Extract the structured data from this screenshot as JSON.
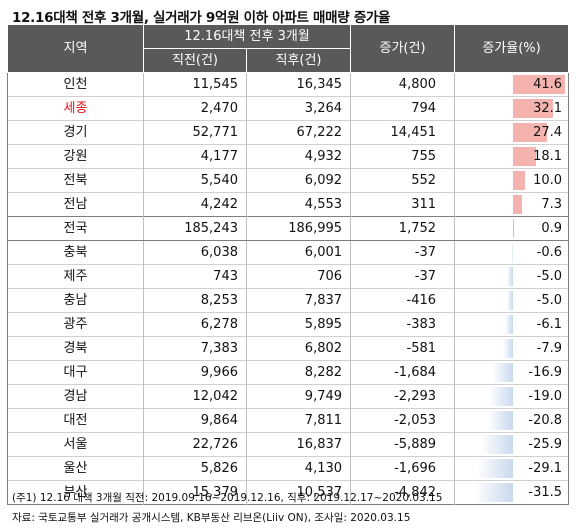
{
  "title": "12.16대책 전후 3개월, 실거래가 9억원 이하 아파트 매매량 증가율",
  "headers": {
    "region": "지역",
    "period_group": "12.16대책 전후 3개월",
    "before": "직전(건)",
    "after": "직후(건)",
    "change": "증가(건)",
    "rate": "증가율(%)"
  },
  "colors": {
    "positive_bar": "#f4b3ae",
    "negative_bar": "#c9d9ee",
    "highlight_text": "#e8141b",
    "header_bg": "#595959"
  },
  "highlight_region": "세종",
  "total_region": "전국",
  "chart_data": {
    "type": "table",
    "title": "12.16대책 전후 3개월, 실거래가 9억원 이하 아파트 매매량 증가율",
    "columns": [
      "지역",
      "직전(건)",
      "직후(건)",
      "증가(건)",
      "증가율(%)"
    ],
    "rows": [
      {
        "region": "인천",
        "before": "11,545",
        "after": "16,345",
        "change": "4,800",
        "rate": 41.6,
        "rate_label": "41.6"
      },
      {
        "region": "세종",
        "before": "2,470",
        "after": "3,264",
        "change": "794",
        "rate": 32.1,
        "rate_label": "32.1"
      },
      {
        "region": "경기",
        "before": "52,771",
        "after": "67,222",
        "change": "14,451",
        "rate": 27.4,
        "rate_label": "27.4"
      },
      {
        "region": "강원",
        "before": "4,177",
        "after": "4,932",
        "change": "755",
        "rate": 18.1,
        "rate_label": "18.1"
      },
      {
        "region": "전북",
        "before": "5,540",
        "after": "6,092",
        "change": "552",
        "rate": 10.0,
        "rate_label": "10.0"
      },
      {
        "region": "전남",
        "before": "4,242",
        "after": "4,553",
        "change": "311",
        "rate": 7.3,
        "rate_label": "7.3"
      },
      {
        "region": "전국",
        "before": "185,243",
        "after": "186,995",
        "change": "1,752",
        "rate": 0.9,
        "rate_label": "0.9"
      },
      {
        "region": "충북",
        "before": "6,038",
        "after": "6,001",
        "change": "-37",
        "rate": -0.6,
        "rate_label": "-0.6"
      },
      {
        "region": "제주",
        "before": "743",
        "after": "706",
        "change": "-37",
        "rate": -5.0,
        "rate_label": "-5.0"
      },
      {
        "region": "충남",
        "before": "8,253",
        "after": "7,837",
        "change": "-416",
        "rate": -5.0,
        "rate_label": "-5.0"
      },
      {
        "region": "광주",
        "before": "6,278",
        "after": "5,895",
        "change": "-383",
        "rate": -6.1,
        "rate_label": "-6.1"
      },
      {
        "region": "경북",
        "before": "7,383",
        "after": "6,802",
        "change": "-581",
        "rate": -7.9,
        "rate_label": "-7.9"
      },
      {
        "region": "대구",
        "before": "9,966",
        "after": "8,282",
        "change": "-1,684",
        "rate": -16.9,
        "rate_label": "-16.9"
      },
      {
        "region": "경남",
        "before": "12,042",
        "after": "9,749",
        "change": "-2,293",
        "rate": -19.0,
        "rate_label": "-19.0"
      },
      {
        "region": "대전",
        "before": "9,864",
        "after": "7,811",
        "change": "-2,053",
        "rate": -20.8,
        "rate_label": "-20.8"
      },
      {
        "region": "서울",
        "before": "22,726",
        "after": "16,837",
        "change": "-5,889",
        "rate": -25.9,
        "rate_label": "-25.9"
      },
      {
        "region": "울산",
        "before": "5,826",
        "after": "4,130",
        "change": "-1,696",
        "rate": -29.1,
        "rate_label": "-29.1"
      },
      {
        "region": "부산",
        "before": "15,379",
        "after": "10,537",
        "change": "-4,842",
        "rate": -31.5,
        "rate_label": "-31.5"
      }
    ],
    "rate_range": [
      -31.5,
      41.6
    ]
  },
  "notes": {
    "note1": "(주1) 12.16 대책 3개월 직전: 2019.09.16~2019.12.16, 직후: 2019.12.17~2020.03.15",
    "note2": "자료: 국토교통부 실거래가 공개시스템, KB부동산 리브온(Liiv ON), 조사일: 2020.03.15"
  }
}
